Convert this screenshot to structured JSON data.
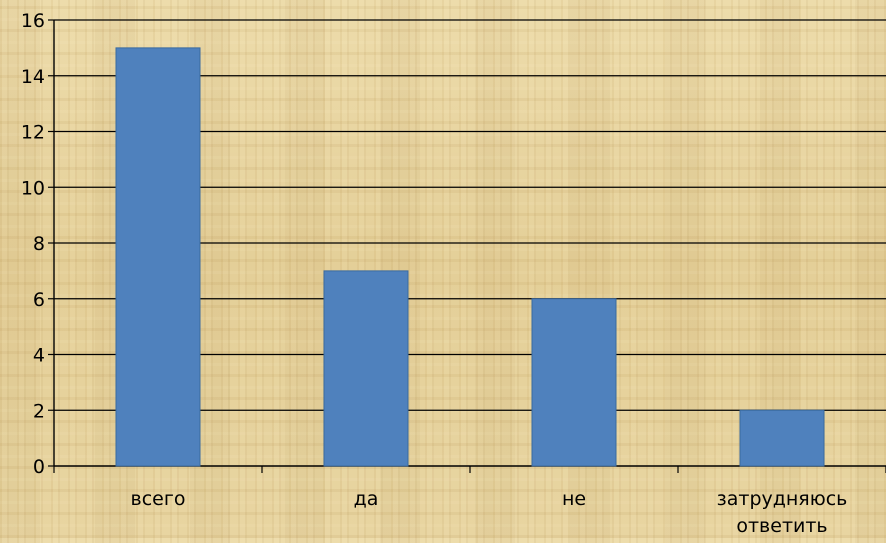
{
  "chart_data": {
    "type": "bar",
    "categories": [
      "всего",
      "да",
      "не",
      "затрудняюсь ответить"
    ],
    "category_lines": [
      [
        "всего"
      ],
      [
        "да"
      ],
      [
        "не"
      ],
      [
        "затрудняюсь",
        "ответить"
      ]
    ],
    "values": [
      15,
      7,
      6,
      2
    ],
    "ylim": [
      0,
      16
    ],
    "y_ticks": [
      "0",
      "2",
      "4",
      "6",
      "8",
      "10",
      "12",
      "14",
      "16"
    ],
    "grid": true,
    "legend": "none",
    "title": "",
    "xlabel": "",
    "ylabel": "",
    "colors": {
      "bar": "#4f81bd",
      "bar_edge": "#3a6a9f",
      "grid": "#000000",
      "axis": "#000000"
    }
  }
}
